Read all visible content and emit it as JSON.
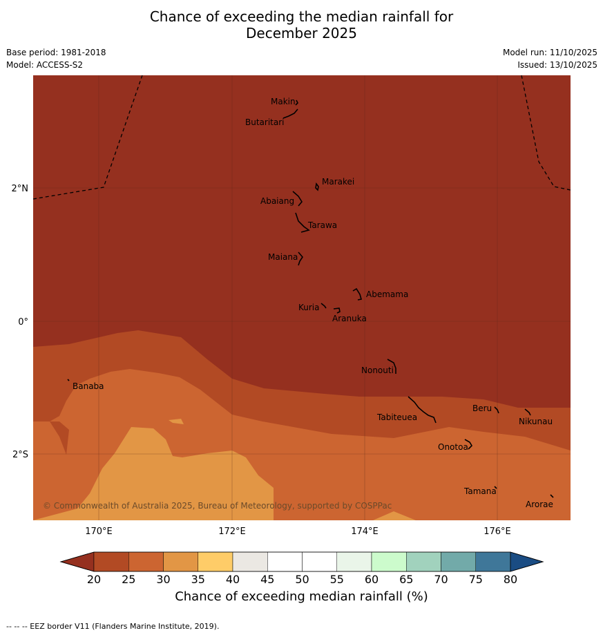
{
  "title": {
    "line1": "Chance of exceeding the median rainfall for",
    "line2": "December 2025"
  },
  "meta": {
    "base_period": "Base period: 1981-2018",
    "model": "Model: ACCESS-S2",
    "model_run": "Model run: 11/10/2025",
    "issued": "Issued: 13/10/2025"
  },
  "map": {
    "lat_labels": [
      "2°N",
      "0°",
      "2°S"
    ],
    "lon_labels": [
      "170°E",
      "172°E",
      "174°E",
      "176°E"
    ],
    "places": [
      "Makin",
      "Butaritari",
      "Marakei",
      "Abaiang",
      "Tarawa",
      "Maiana",
      "Abemama",
      "Kuria",
      "Aranuka",
      "Nonouti",
      "Banaba",
      "Tabiteuea",
      "Beru",
      "Nikunau",
      "Onotoa",
      "Tamana",
      "Arorae"
    ],
    "copyright": "© Commonwealth of Australia 2025, Bureau of Meteorology, supported by COSPPac"
  },
  "colors": {
    "band_20": "#95301f",
    "band_25": "#b24a24",
    "band_30": "#cc6531",
    "band_35": "#e29645",
    "band_40": "#fecc68"
  },
  "colorbar": {
    "ticks": [
      "20",
      "25",
      "30",
      "35",
      "40",
      "45",
      "50",
      "55",
      "60",
      "65",
      "70",
      "75",
      "80"
    ],
    "colors": [
      "#b24a24",
      "#cc6531",
      "#e29645",
      "#fecc68",
      "#ebe8e3",
      "#ffffff",
      "#ffffff",
      "#eaf5e9",
      "#ccfbcc",
      "#a1d2bd",
      "#72aaa9",
      "#3f7799"
    ],
    "low_color": "#95301f",
    "high_color": "#1a4c83",
    "label": "Chance of exceeding median rainfall (%)"
  },
  "footer": "--  --  -- EEZ border V11 (Flanders Marine Institute, 2019)."
}
